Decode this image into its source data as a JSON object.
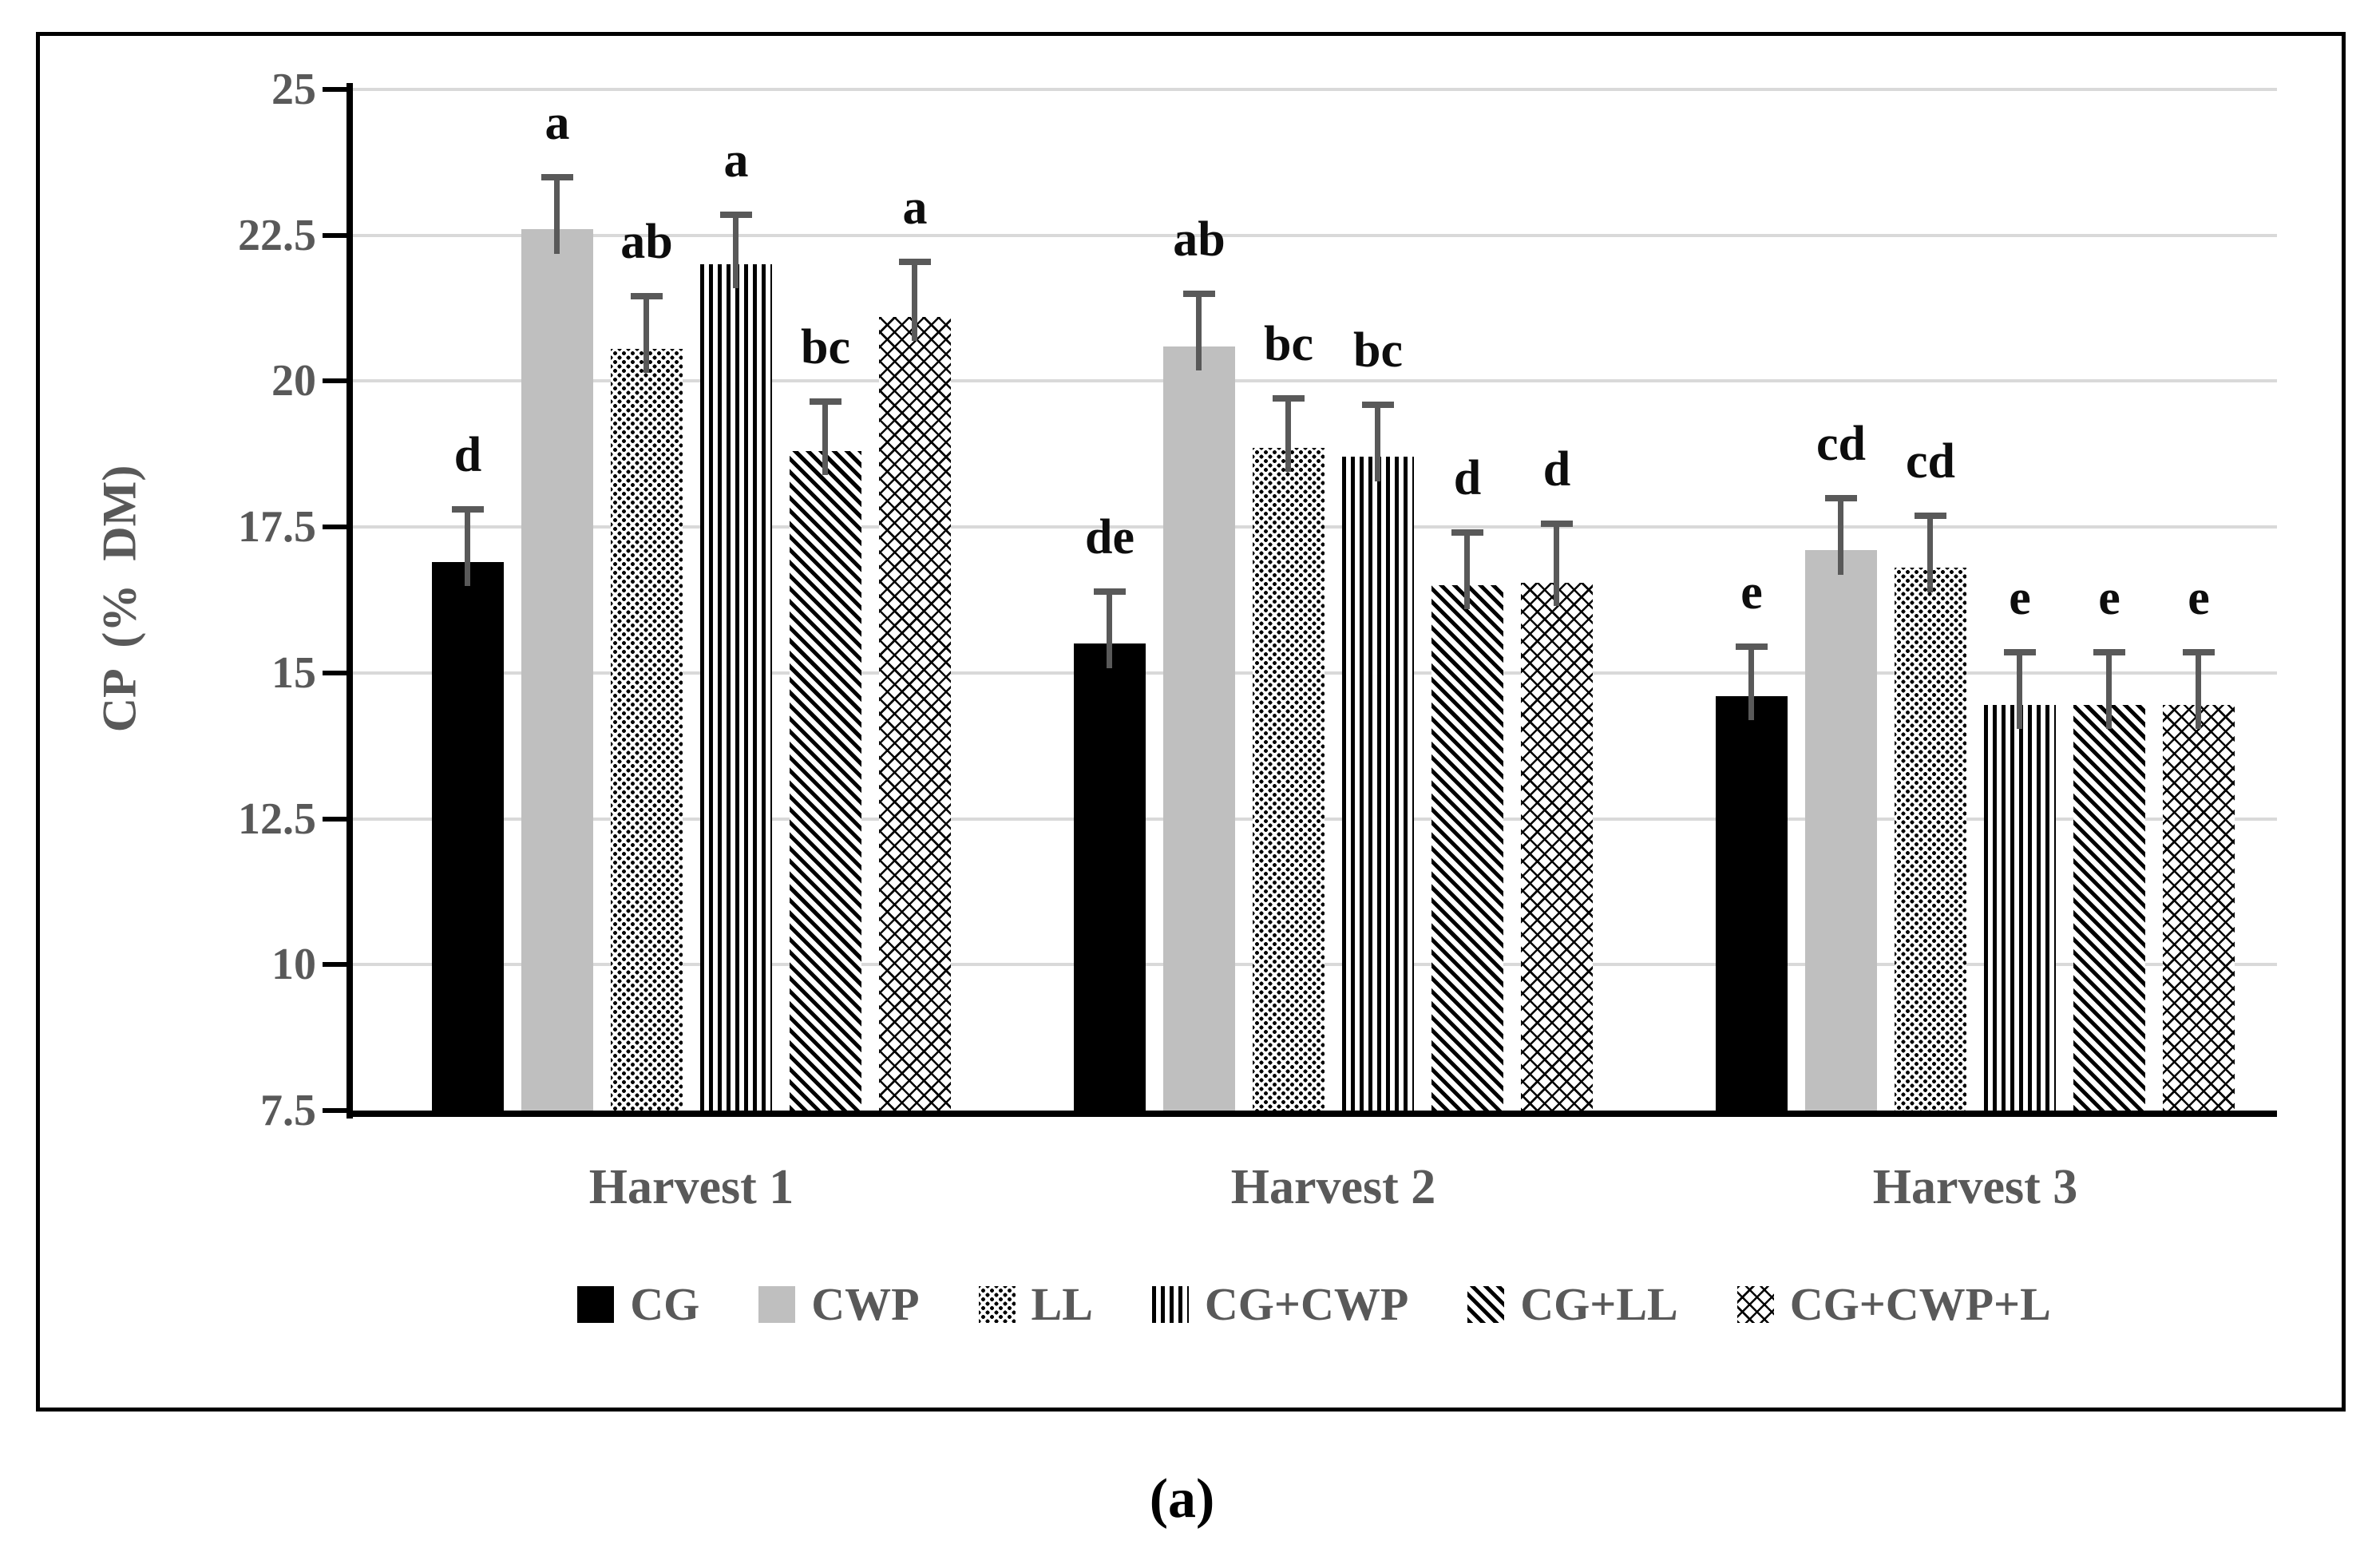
{
  "figure": {
    "caption": "(a)"
  },
  "colors": {
    "axis": "#000000",
    "gridline": "#d9d9d9",
    "error_bar": "#595959",
    "text_gray": "#595959",
    "letter_black": "#0d0d0d",
    "bar_gray": "#bfbfbf",
    "bar_black": "#000000"
  },
  "chart_data": {
    "type": "bar",
    "title": "",
    "xlabel": "",
    "ylabel": "CP (% DM)",
    "ylim": [
      7.5,
      25
    ],
    "ytick_step": 2.5,
    "y_ticks": [
      "25",
      "22.5",
      "20",
      "17.5",
      "15",
      "12.5",
      "10",
      "7.5"
    ],
    "grid": true,
    "legend_position": "bottom",
    "categories": [
      "Harvest 1",
      "Harvest 2",
      "Harvest 3"
    ],
    "series": [
      {
        "name": "CG",
        "pattern": "solid-black",
        "values": [
          16.9,
          15.5,
          14.6
        ],
        "error_top": [
          17.8,
          16.4,
          15.45
        ],
        "letters": [
          "d",
          "de",
          "e"
        ]
      },
      {
        "name": "CWP",
        "pattern": "solid-gray",
        "values": [
          22.6,
          20.6,
          17.1
        ],
        "error_top": [
          23.5,
          21.5,
          18.0
        ],
        "letters": [
          "a",
          "ab",
          "cd"
        ]
      },
      {
        "name": "LL",
        "pattern": "dots",
        "values": [
          20.55,
          18.85,
          16.8
        ],
        "error_top": [
          21.45,
          19.7,
          17.7
        ],
        "letters": [
          "ab",
          "bc",
          "cd"
        ]
      },
      {
        "name": "CG+CWP",
        "pattern": "vertical-stripes",
        "values": [
          22.0,
          18.7,
          14.45
        ],
        "error_top": [
          22.85,
          19.6,
          15.35
        ],
        "letters": [
          "a",
          "bc",
          "e"
        ]
      },
      {
        "name": "CG+LL",
        "pattern": "diagonal-stripes",
        "values": [
          18.8,
          16.5,
          14.45
        ],
        "error_top": [
          19.65,
          17.4,
          15.35
        ],
        "letters": [
          "bc",
          "d",
          "e"
        ]
      },
      {
        "name": "CG+CWP+L",
        "pattern": "diamond-crosshatch",
        "values": [
          21.1,
          16.55,
          14.45
        ],
        "error_top": [
          22.05,
          17.55,
          15.35
        ],
        "letters": [
          "a",
          "d",
          "e"
        ]
      }
    ]
  }
}
